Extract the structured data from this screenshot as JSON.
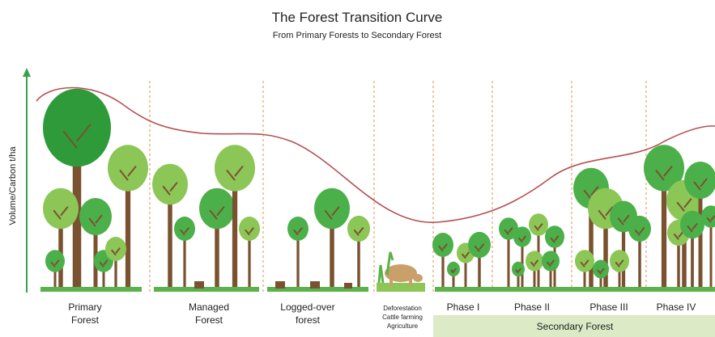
{
  "header": {
    "title": "The Forest Transition Curve",
    "subtitle": "From Primary Forests to Secondary Forest"
  },
  "y_axis_label": "Volume/Carbon t/ha",
  "stages": [
    {
      "lines": [
        "Primary",
        "Forest"
      ]
    },
    {
      "lines": [
        "Managed",
        "Forest"
      ]
    },
    {
      "lines": [
        "Logged-over",
        "forest"
      ]
    },
    {
      "lines": [
        "Deforestation",
        "Cattle farming",
        "Agriculture"
      ]
    },
    {
      "lines": [
        "Phase I"
      ]
    },
    {
      "lines": [
        "Phase II"
      ]
    },
    {
      "lines": [
        "Phase III"
      ]
    },
    {
      "lines": [
        "Phase IV"
      ]
    }
  ],
  "secondary_label": "Secondary Forest"
}
